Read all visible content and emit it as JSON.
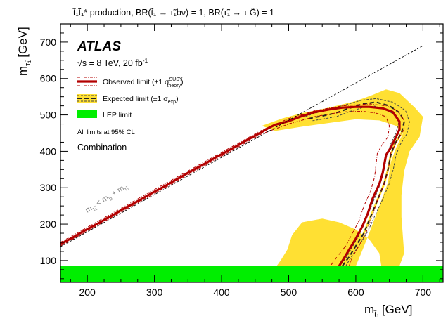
{
  "chart_data": {
    "type": "line",
    "title": "t̃₁t̃₁* production, BR(t̃₁ → τ̃₁bν) = 1, BR(τ̃₁ → τ G̃) = 1",
    "xlabel": "m",
    "xlabel_sub": "t̃₁",
    "xlabel_unit": "[GeV]",
    "ylabel": "m",
    "ylabel_sub": "τ̃₁",
    "ylabel_unit": "[GeV]",
    "xlim": [
      160,
      730
    ],
    "ylim": [
      40,
      750
    ],
    "x_ticks": [
      200,
      300,
      400,
      500,
      600,
      700
    ],
    "y_ticks": [
      100,
      200,
      300,
      400,
      500,
      600,
      700
    ],
    "experiment": "ATLAS",
    "energy_label": "√s = 8 TeV, 20 fb",
    "energy_sup": "-1",
    "cl_note": "All limits at 95% CL",
    "combination_label": "Combination",
    "diagonal_label": "m",
    "diagonal_label_sub": "τ̃₁",
    "diagonal_label_rel": " < m",
    "diagonal_label_sub2": "b",
    "diagonal_label_rel2": " + m",
    "diagonal_label_sub3": "τ̃₁",
    "legend": [
      {
        "label": "Observed limit (±1 σ",
        "sup": "SUSY",
        "sub": "theory",
        "tail": ")",
        "color": "#b30000"
      },
      {
        "label": "Expected limit (±1 σ",
        "sup": "",
        "sub": "exp",
        "tail": ")",
        "color": "#333333"
      },
      {
        "label": "LEP limit",
        "sup": "",
        "sub": "",
        "tail": "",
        "color": "#00ee00"
      }
    ],
    "series": [
      {
        "name": "Observed limit",
        "points": [
          [
            160,
            145
          ],
          [
            170,
            155
          ],
          [
            180,
            165
          ],
          [
            190,
            176
          ],
          [
            200,
            186
          ],
          [
            210,
            196
          ],
          [
            220,
            206
          ],
          [
            230,
            217
          ],
          [
            240,
            227
          ],
          [
            250,
            238
          ],
          [
            260,
            248
          ],
          [
            270,
            258
          ],
          [
            280,
            268
          ],
          [
            290,
            279
          ],
          [
            300,
            289
          ],
          [
            310,
            299
          ],
          [
            320,
            309
          ],
          [
            330,
            320
          ],
          [
            340,
            330
          ],
          [
            350,
            341
          ],
          [
            360,
            351
          ],
          [
            370,
            361
          ],
          [
            380,
            371
          ],
          [
            390,
            382
          ],
          [
            400,
            392
          ],
          [
            410,
            402
          ],
          [
            420,
            412
          ],
          [
            430,
            423
          ],
          [
            440,
            433
          ],
          [
            450,
            443
          ],
          [
            460,
            453
          ],
          [
            470,
            464
          ],
          [
            480,
            473
          ],
          [
            500,
            483
          ],
          [
            520,
            497
          ],
          [
            540,
            508
          ],
          [
            560,
            515
          ],
          [
            580,
            520
          ],
          [
            600,
            522
          ],
          [
            620,
            522
          ],
          [
            640,
            518
          ],
          [
            655,
            508
          ],
          [
            665,
            482
          ],
          [
            665,
            460
          ],
          [
            660,
            440
          ],
          [
            652,
            410
          ],
          [
            645,
            390
          ],
          [
            640,
            340
          ],
          [
            635,
            310
          ],
          [
            625,
            270
          ],
          [
            618,
            230
          ],
          [
            610,
            195
          ],
          [
            600,
            160
          ],
          [
            590,
            130
          ],
          [
            582,
            105
          ],
          [
            575,
            85
          ]
        ]
      },
      {
        "name": "Expected limit",
        "points": [
          [
            580,
            85
          ],
          [
            590,
            110
          ],
          [
            600,
            140
          ],
          [
            612,
            175
          ],
          [
            622,
            220
          ],
          [
            632,
            265
          ],
          [
            642,
            310
          ],
          [
            648,
            350
          ],
          [
            652,
            390
          ],
          [
            658,
            420
          ],
          [
            668,
            450
          ],
          [
            672,
            480
          ],
          [
            666,
            505
          ],
          [
            650,
            525
          ],
          [
            630,
            535
          ],
          [
            610,
            530
          ],
          [
            590,
            518
          ],
          [
            570,
            505
          ],
          [
            550,
            497
          ],
          [
            530,
            490
          ]
        ]
      },
      {
        "name": "Diagonal",
        "points": [
          [
            160,
            138
          ],
          [
            700,
            690
          ]
        ]
      }
    ],
    "observed_band_upper": [
      [
        160,
        150
      ],
      [
        300,
        295
      ],
      [
        460,
        458
      ],
      [
        500,
        490
      ],
      [
        540,
        512
      ],
      [
        580,
        525
      ],
      [
        620,
        530
      ],
      [
        645,
        525
      ],
      [
        662,
        512
      ],
      [
        672,
        485
      ],
      [
        672,
        460
      ],
      [
        662,
        430
      ],
      [
        652,
        395
      ],
      [
        648,
        345
      ],
      [
        642,
        310
      ],
      [
        632,
        265
      ],
      [
        624,
        220
      ],
      [
        616,
        180
      ],
      [
        606,
        145
      ],
      [
        595,
        110
      ],
      [
        590,
        85
      ]
    ],
    "observed_band_lower": [
      [
        160,
        140
      ],
      [
        300,
        284
      ],
      [
        460,
        448
      ],
      [
        500,
        475
      ],
      [
        540,
        496
      ],
      [
        580,
        508
      ],
      [
        610,
        510
      ],
      [
        630,
        505
      ],
      [
        645,
        495
      ],
      [
        650,
        470
      ],
      [
        648,
        440
      ],
      [
        640,
        420
      ],
      [
        632,
        395
      ],
      [
        628,
        330
      ],
      [
        622,
        290
      ],
      [
        612,
        250
      ],
      [
        605,
        210
      ],
      [
        595,
        175
      ],
      [
        585,
        140
      ],
      [
        572,
        110
      ],
      [
        562,
        85
      ]
    ],
    "expected_band_upper": [
      [
        585,
        85
      ],
      [
        595,
        115
      ],
      [
        606,
        145
      ],
      [
        618,
        180
      ],
      [
        628,
        222
      ],
      [
        640,
        268
      ],
      [
        650,
        312
      ],
      [
        656,
        352
      ],
      [
        660,
        390
      ],
      [
        666,
        418
      ],
      [
        676,
        448
      ],
      [
        680,
        480
      ],
      [
        674,
        512
      ],
      [
        655,
        535
      ],
      [
        630,
        545
      ],
      [
        608,
        540
      ],
      [
        585,
        528
      ],
      [
        560,
        515
      ],
      [
        540,
        505
      ],
      [
        525,
        496
      ]
    ],
    "expected_band_lower": [
      [
        575,
        85
      ],
      [
        585,
        105
      ],
      [
        594,
        135
      ],
      [
        605,
        170
      ],
      [
        616,
        218
      ],
      [
        626,
        262
      ],
      [
        636,
        308
      ],
      [
        642,
        348
      ],
      [
        646,
        388
      ],
      [
        652,
        420
      ],
      [
        660,
        452
      ],
      [
        664,
        480
      ],
      [
        658,
        500
      ],
      [
        645,
        515
      ],
      [
        628,
        524
      ],
      [
        610,
        520
      ],
      [
        592,
        510
      ],
      [
        572,
        496
      ],
      [
        552,
        489
      ],
      [
        535,
        484
      ]
    ],
    "yellow_band": [
      [
        460,
        470
      ],
      [
        490,
        490
      ],
      [
        520,
        505
      ],
      [
        560,
        520
      ],
      [
        600,
        538
      ],
      [
        625,
        555
      ],
      [
        645,
        570
      ],
      [
        665,
        560
      ],
      [
        688,
        520
      ],
      [
        700,
        495
      ],
      [
        695,
        440
      ],
      [
        680,
        400
      ],
      [
        672,
        345
      ],
      [
        668,
        280
      ],
      [
        668,
        220
      ],
      [
        670,
        170
      ],
      [
        672,
        120
      ],
      [
        665,
        85
      ],
      [
        638,
        85
      ],
      [
        635,
        120
      ],
      [
        620,
        158
      ],
      [
        600,
        185
      ],
      [
        575,
        205
      ],
      [
        550,
        215
      ],
      [
        520,
        205
      ],
      [
        505,
        170
      ],
      [
        498,
        130
      ],
      [
        488,
        100
      ],
      [
        482,
        85
      ],
      [
        600,
        85
      ],
      [
        608,
        120
      ],
      [
        620,
        175
      ],
      [
        630,
        225
      ],
      [
        640,
        275
      ],
      [
        648,
        315
      ],
      [
        652,
        370
      ],
      [
        660,
        410
      ],
      [
        670,
        448
      ],
      [
        660,
        470
      ],
      [
        635,
        485
      ],
      [
        600,
        488
      ],
      [
        560,
        478
      ],
      [
        520,
        468
      ],
      [
        480,
        456
      ]
    ],
    "lep_limit": 85
  }
}
